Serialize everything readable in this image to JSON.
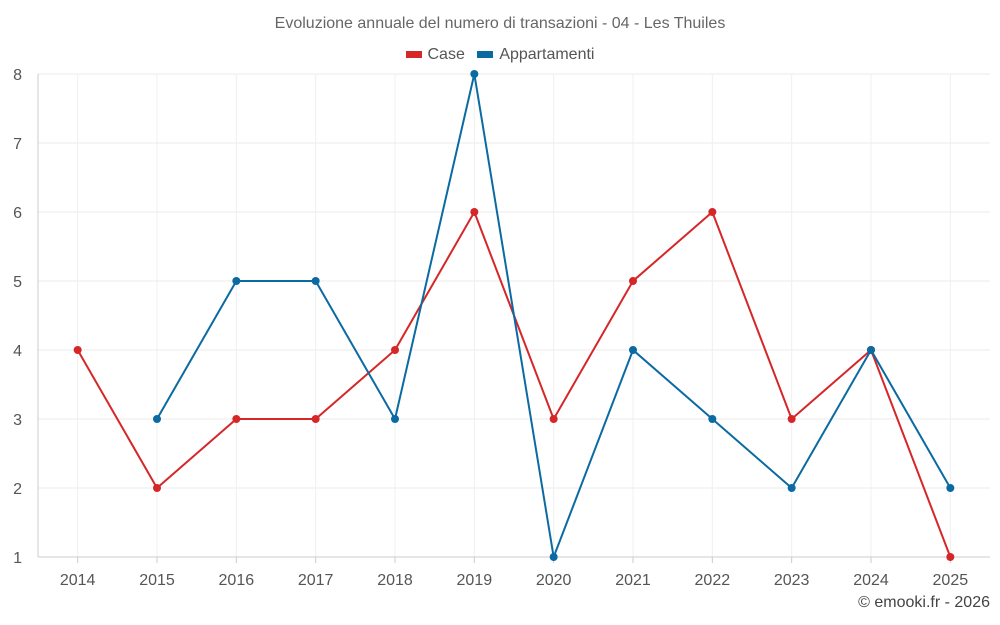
{
  "chart_data": {
    "type": "line",
    "title": "Evoluzione annuale del numero di transazioni - 04 - Les Thuiles",
    "categories": [
      "2014",
      "2015",
      "2016",
      "2017",
      "2018",
      "2019",
      "2020",
      "2021",
      "2022",
      "2023",
      "2024",
      "2025"
    ],
    "series": [
      {
        "name": "Case",
        "color": "#d62728",
        "values": [
          4,
          2,
          3,
          3,
          4,
          6,
          3,
          5,
          6,
          3,
          4,
          1
        ]
      },
      {
        "name": "Appartamenti",
        "color": "#0b6aa2",
        "values": [
          null,
          3,
          5,
          5,
          3,
          8,
          1,
          4,
          3,
          2,
          4,
          2
        ]
      }
    ],
    "xlabel": "",
    "ylabel": "",
    "ylim": [
      1,
      8
    ],
    "yticks": [
      1,
      2,
      3,
      4,
      5,
      6,
      7,
      8
    ],
    "grid": true,
    "legend_position": "top-center"
  },
  "credit": "© emooki.fr - 2026"
}
